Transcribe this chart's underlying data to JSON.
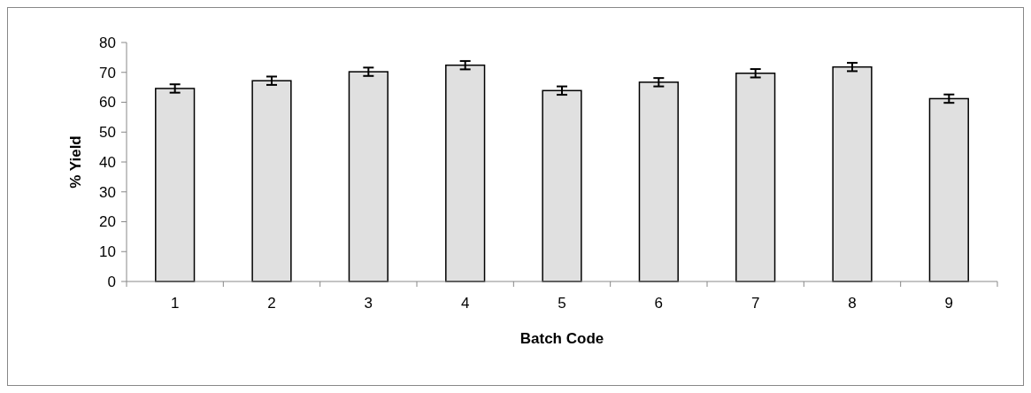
{
  "chart_data": {
    "type": "bar",
    "xlabel": "Batch Code",
    "ylabel": "% Yield",
    "categories": [
      "1",
      "2",
      "3",
      "4",
      "5",
      "6",
      "7",
      "8",
      "9"
    ],
    "values": [
      64.6,
      67.2,
      70.2,
      72.4,
      63.9,
      66.7,
      69.7,
      71.8,
      61.2
    ],
    "errors": [
      1.4,
      1.4,
      1.4,
      1.4,
      1.4,
      1.4,
      1.4,
      1.4,
      1.4
    ],
    "color": "#e0e0e0",
    "ylim": [
      0,
      80
    ],
    "yticks": [
      0,
      10,
      20,
      30,
      40,
      50,
      60,
      70,
      80
    ],
    "grid": false
  }
}
